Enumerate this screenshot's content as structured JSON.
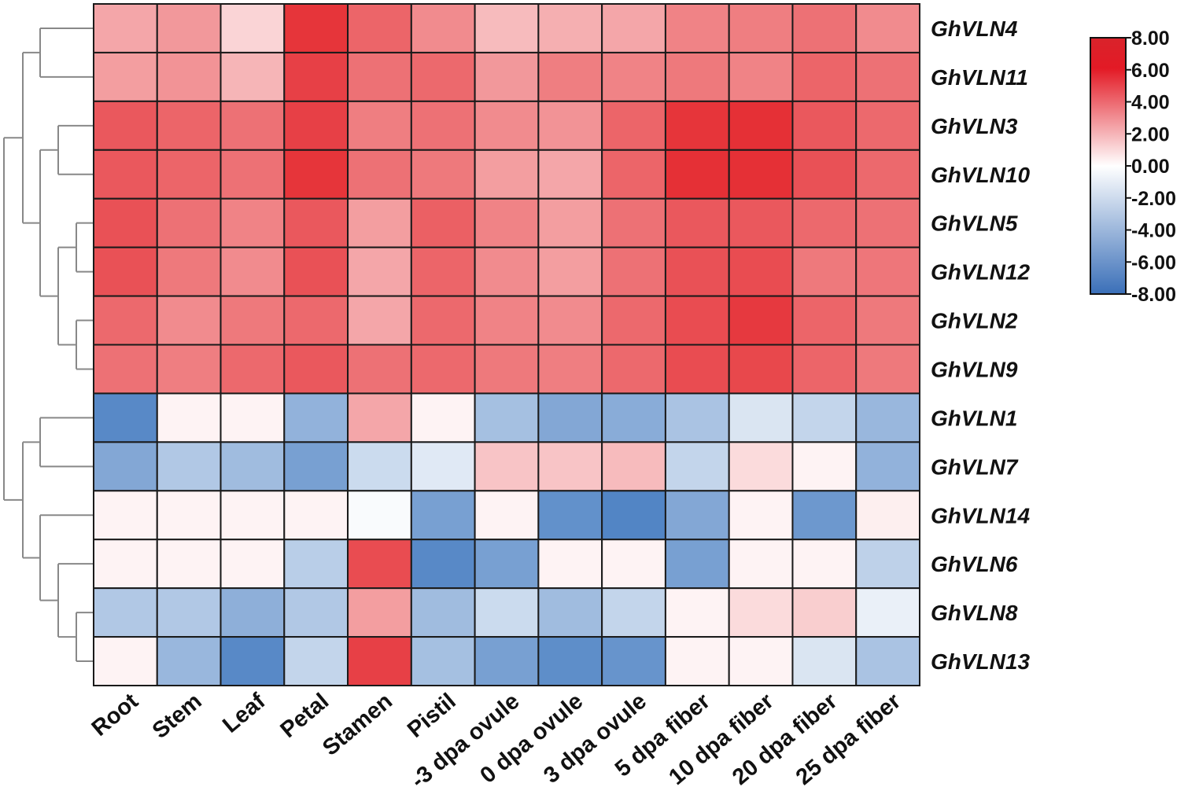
{
  "chart_data": {
    "type": "heatmap",
    "title": "",
    "columns": [
      "Root",
      "Stem",
      "Leaf",
      "Petal",
      "Stamen",
      "Pistil",
      "-3 dpa ovule",
      "0 dpa ovule",
      "3 dpa ovule",
      "5 dpa fiber",
      "10 dpa fiber",
      "20 dpa fiber",
      "25 dpa fiber"
    ],
    "rows": [
      "GhVLN4",
      "GhVLN11",
      "GhVLN3",
      "GhVLN10",
      "GhVLN5",
      "GhVLN12",
      "GhVLN2",
      "GhVLN9",
      "GhVLN1",
      "GhVLN7",
      "GhVLN14",
      "GhVLN6",
      "GhVLN8",
      "GhVLN13"
    ],
    "values": [
      [
        2.5,
        3.0,
        1.0,
        7.0,
        5.0,
        3.5,
        1.8,
        2.2,
        2.5,
        3.8,
        4.0,
        4.5,
        3.5
      ],
      [
        2.8,
        3.2,
        2.0,
        6.5,
        4.5,
        4.8,
        3.0,
        4.0,
        3.8,
        4.2,
        3.8,
        5.0,
        4.5
      ],
      [
        5.5,
        5.0,
        4.5,
        6.5,
        4.0,
        4.5,
        3.5,
        3.2,
        5.0,
        7.0,
        7.2,
        5.5,
        4.8
      ],
      [
        5.5,
        5.0,
        4.5,
        7.0,
        4.5,
        4.2,
        2.8,
        2.5,
        5.0,
        7.2,
        7.2,
        5.8,
        4.8
      ],
      [
        5.8,
        4.5,
        3.8,
        5.5,
        2.8,
        5.2,
        3.8,
        2.8,
        4.5,
        5.5,
        5.5,
        4.8,
        4.5
      ],
      [
        5.8,
        4.2,
        3.5,
        5.8,
        2.5,
        5.0,
        3.5,
        2.8,
        4.5,
        5.8,
        6.0,
        4.2,
        4.3
      ],
      [
        4.8,
        3.5,
        4.2,
        4.8,
        2.5,
        4.8,
        3.8,
        3.5,
        4.8,
        6.0,
        6.8,
        5.0,
        4.2
      ],
      [
        4.5,
        4.0,
        4.8,
        5.5,
        4.5,
        4.8,
        4.2,
        4.0,
        4.8,
        6.0,
        6.2,
        5.0,
        4.2
      ],
      [
        -6.5,
        0.2,
        0.2,
        -3.8,
        2.5,
        0.2,
        -3.0,
        -4.5,
        -4.2,
        -2.8,
        -1.0,
        -1.8,
        -3.5
      ],
      [
        -4.5,
        -2.5,
        -3.2,
        -5.0,
        -1.5,
        -0.8,
        1.5,
        1.5,
        1.8,
        -1.8,
        0.8,
        0.2,
        -3.8
      ],
      [
        0.2,
        0.2,
        0.2,
        0.2,
        -0.1,
        -5.0,
        0.2,
        -6.0,
        -6.8,
        -4.5,
        0.2,
        -5.5,
        0.3
      ],
      [
        0.2,
        0.2,
        0.2,
        -2.2,
        6.0,
        -6.5,
        -5.0,
        0.2,
        0.2,
        -5.0,
        0.2,
        0.2,
        -2.0
      ],
      [
        -2.5,
        -2.5,
        -4.0,
        -2.5,
        2.8,
        -3.2,
        -1.5,
        -3.2,
        -1.8,
        0.2,
        0.8,
        1.2,
        -0.5
      ],
      [
        0.2,
        -3.5,
        -6.5,
        -1.8,
        6.5,
        -3.0,
        -5.0,
        -6.2,
        -5.8,
        0.2,
        0.2,
        -1.0,
        -2.8
      ]
    ],
    "row_dendrogram": [
      [
        [
          "GhVLN4",
          "GhVLN11"
        ],
        [
          [
            "GhVLN3",
            "GhVLN10"
          ],
          [
            [
              "GhVLN5",
              "GhVLN12"
            ],
            [
              "GhVLN2",
              "GhVLN9"
            ]
          ]
        ]
      ],
      [
        [
          "GhVLN1",
          "GhVLN7"
        ],
        [
          "GhVLN14",
          [
            "GhVLN6",
            [
              "GhVLN8",
              "GhVLN13"
            ]
          ]
        ]
      ]
    ],
    "colorbar": {
      "range": [
        -8,
        8
      ],
      "ticks": [
        "8.00",
        "6.00",
        "4.00",
        "2.00",
        "0.00",
        "-2.00",
        "-4.00",
        "-6.00",
        "-8.00"
      ],
      "colors": {
        "high": "#e31e24",
        "mid": "#ffffff",
        "low": "#3a74bd"
      }
    },
    "grid": false,
    "legend_position": "right"
  }
}
